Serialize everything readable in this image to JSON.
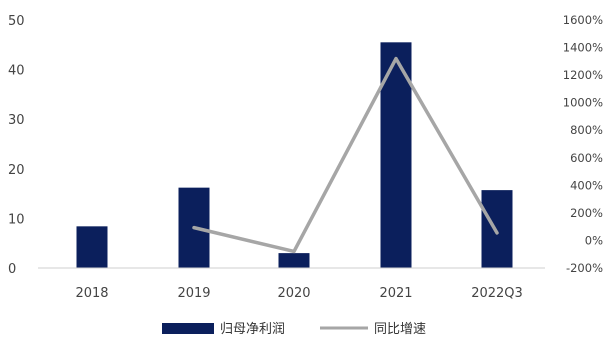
{
  "chart_data": {
    "type": "bar",
    "title": "",
    "xlabel": "",
    "ylabel": "",
    "categories": [
      "2018",
      "2019",
      "2020",
      "2021",
      "2022Q3"
    ],
    "left_axis": {
      "ylim": [
        0,
        50
      ],
      "ticks": [
        "0",
        "10",
        "20",
        "30",
        "40",
        "50"
      ]
    },
    "right_axis": {
      "ylim": [
        -200,
        1600
      ],
      "ticks": [
        "-200%",
        "0%",
        "200%",
        "400%",
        "600%",
        "800%",
        "1000%",
        "1200%",
        "1400%",
        "1600%"
      ]
    },
    "series": [
      {
        "name": "归母净利润",
        "type": "bar",
        "axis": "left",
        "color": "#0b1f5c",
        "values": [
          8.4,
          16.2,
          3.0,
          45.5,
          15.7
        ]
      },
      {
        "name": "同比增速",
        "type": "line",
        "axis": "right",
        "color": "#a6a6a6",
        "values": [
          null,
          93,
          -80,
          1320,
          55
        ]
      }
    ],
    "grid": false,
    "legend": "bottom-center"
  }
}
